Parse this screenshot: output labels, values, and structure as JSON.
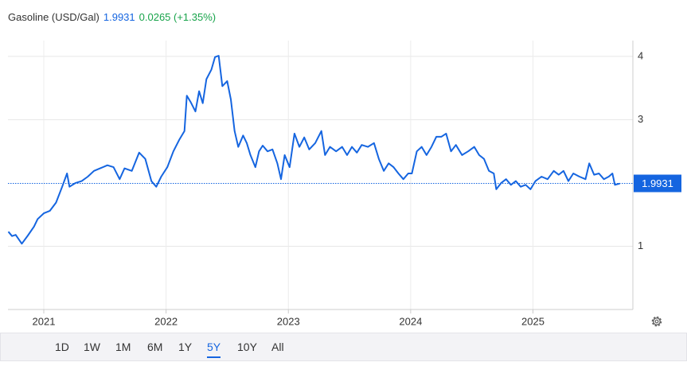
{
  "chart_data": {
    "type": "line",
    "title": "Gasoline (USD/Gal)",
    "last": 1.9931,
    "change": "0.0265 (+1.35%)",
    "series": [
      {
        "name": "Gasoline",
        "color": "#1565e0",
        "x": [
          2020.71,
          2020.74,
          2020.77,
          2020.82,
          2020.87,
          2020.92,
          2020.95,
          2021.0,
          2021.05,
          2021.1,
          2021.15,
          2021.19,
          2021.21,
          2021.26,
          2021.31,
          2021.36,
          2021.41,
          2021.46,
          2021.52,
          2021.57,
          2021.62,
          2021.66,
          2021.72,
          2021.78,
          2021.83,
          2021.88,
          2021.92,
          2021.96,
          2022.01,
          2022.06,
          2022.11,
          2022.15,
          2022.17,
          2022.2,
          2022.24,
          2022.27,
          2022.3,
          2022.33,
          2022.37,
          2022.4,
          2022.43,
          2022.46,
          2022.5,
          2022.53,
          2022.56,
          2022.59,
          2022.63,
          2022.66,
          2022.69,
          2022.73,
          2022.76,
          2022.79,
          2022.83,
          2022.87,
          2022.91,
          2022.94,
          2022.97,
          2023.01,
          2023.05,
          2023.09,
          2023.13,
          2023.17,
          2023.22,
          2023.27,
          2023.3,
          2023.34,
          2023.39,
          2023.44,
          2023.48,
          2023.52,
          2023.56,
          2023.6,
          2023.65,
          2023.7,
          2023.74,
          2023.78,
          2023.82,
          2023.86,
          2023.9,
          2023.94,
          2023.98,
          2024.01,
          2024.05,
          2024.09,
          2024.13,
          2024.17,
          2024.21,
          2024.25,
          2024.29,
          2024.33,
          2024.37,
          2024.42,
          2024.47,
          2024.52,
          2024.56,
          2024.6,
          2024.64,
          2024.68,
          2024.7,
          2024.74,
          2024.78,
          2024.82,
          2024.86,
          2024.9,
          2024.94,
          2024.98,
          2025.02,
          2025.07,
          2025.12,
          2025.17,
          2025.21,
          2025.25,
          2025.29,
          2025.33,
          2025.38,
          2025.43,
          2025.46,
          2025.5,
          2025.54,
          2025.58,
          2025.62,
          2025.65,
          2025.67,
          2025.71
        ],
        "values": [
          1.23,
          1.16,
          1.18,
          1.04,
          1.17,
          1.31,
          1.43,
          1.52,
          1.56,
          1.69,
          1.94,
          2.15,
          1.94,
          2.0,
          2.03,
          2.1,
          2.19,
          2.23,
          2.28,
          2.25,
          2.06,
          2.23,
          2.19,
          2.48,
          2.38,
          2.03,
          1.94,
          2.1,
          2.25,
          2.5,
          2.69,
          2.82,
          3.38,
          3.28,
          3.13,
          3.45,
          3.26,
          3.64,
          3.79,
          3.99,
          4.01,
          3.53,
          3.61,
          3.32,
          2.82,
          2.57,
          2.75,
          2.63,
          2.44,
          2.25,
          2.5,
          2.59,
          2.5,
          2.53,
          2.31,
          2.06,
          2.44,
          2.25,
          2.78,
          2.57,
          2.72,
          2.53,
          2.63,
          2.82,
          2.44,
          2.57,
          2.5,
          2.57,
          2.44,
          2.57,
          2.48,
          2.6,
          2.57,
          2.63,
          2.38,
          2.19,
          2.31,
          2.25,
          2.15,
          2.06,
          2.15,
          2.15,
          2.5,
          2.57,
          2.44,
          2.57,
          2.73,
          2.73,
          2.78,
          2.5,
          2.6,
          2.44,
          2.5,
          2.57,
          2.44,
          2.38,
          2.19,
          2.15,
          1.9,
          2.0,
          2.06,
          1.97,
          2.03,
          1.94,
          1.97,
          1.9,
          2.03,
          2.1,
          2.06,
          2.19,
          2.13,
          2.19,
          2.03,
          2.15,
          2.1,
          2.06,
          2.31,
          2.13,
          2.15,
          2.06,
          2.1,
          2.15,
          1.97,
          1.99
        ]
      }
    ],
    "xlim": [
      2020.707,
      2025.817
    ],
    "xticks": [
      2021,
      2022,
      2023,
      2024,
      2025
    ],
    "ylim": [
      0,
      4.25
    ],
    "yticks": [
      1,
      3,
      4
    ],
    "grid": true,
    "ranges": [
      "1D",
      "1W",
      "1M",
      "6M",
      "1Y",
      "5Y",
      "10Y",
      "All"
    ],
    "selected_range": "5Y"
  }
}
